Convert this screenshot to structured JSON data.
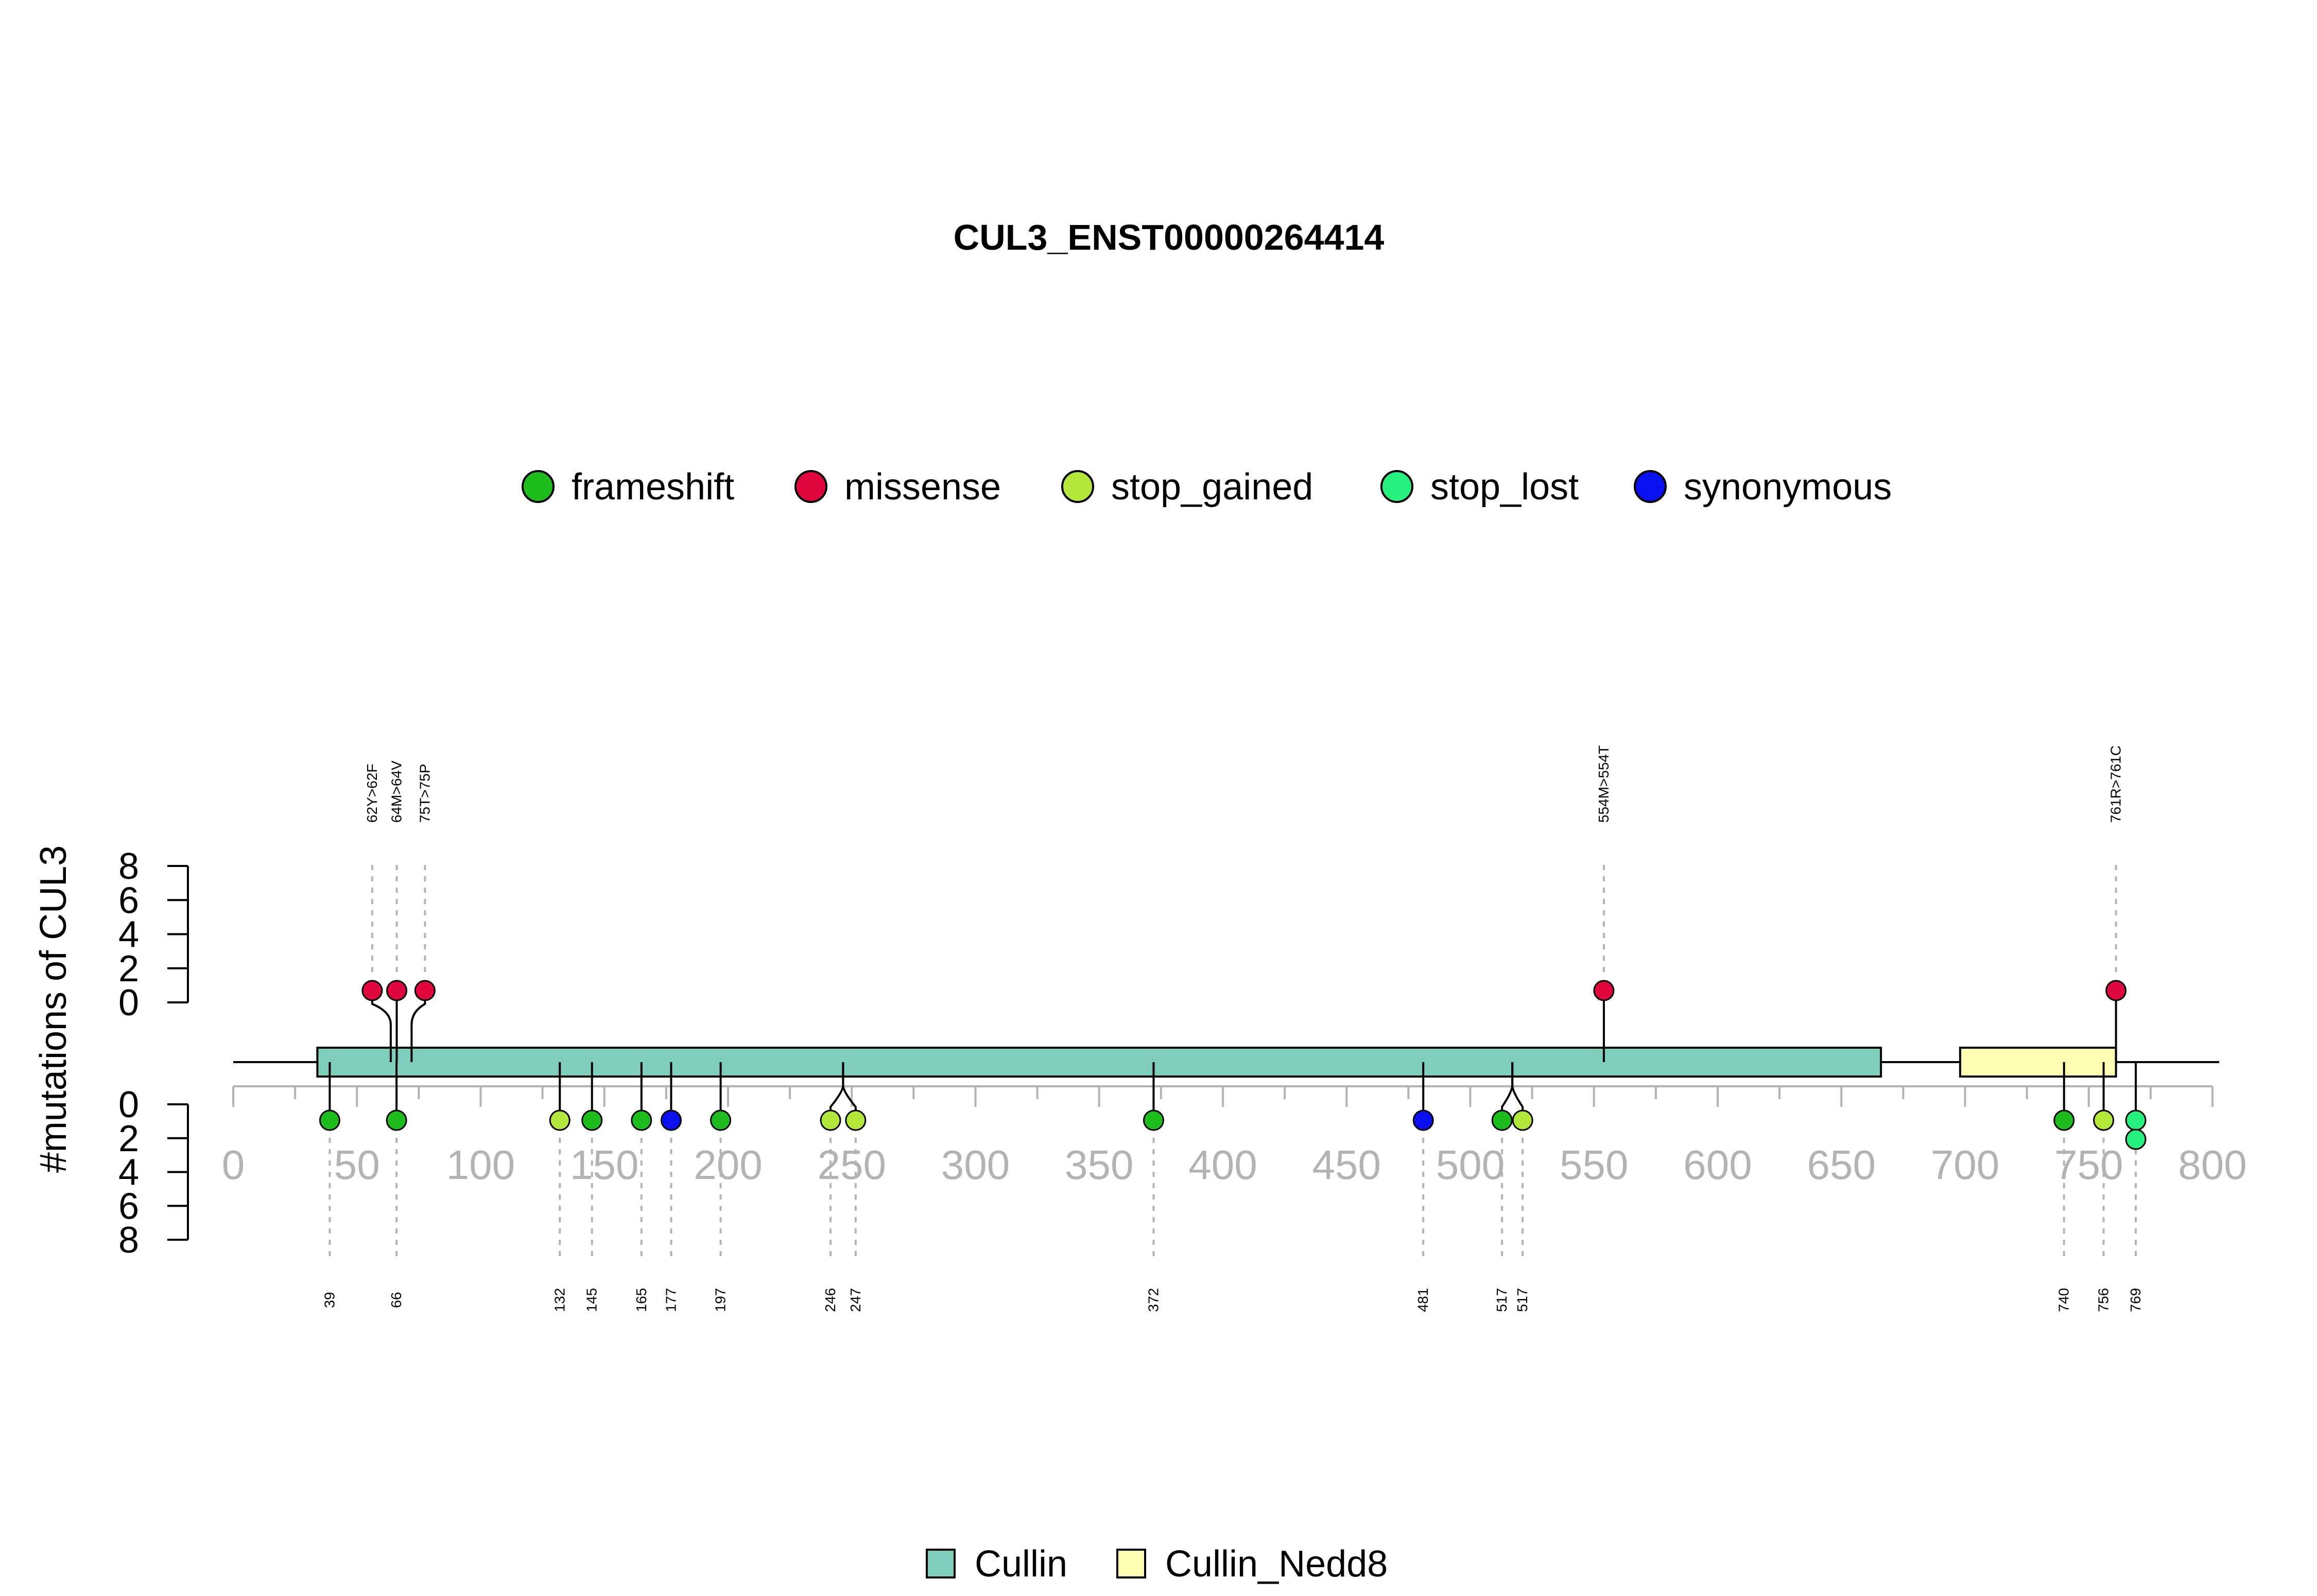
{
  "chart_data": {
    "type": "lollipop",
    "title": "CUL3_ENST00000264414",
    "ylabel": "#mutations of CUL3",
    "x_axis": {
      "min": 0,
      "max": 800,
      "ticks": [
        0,
        50,
        100,
        150,
        200,
        250,
        300,
        350,
        400,
        450,
        500,
        550,
        600,
        650,
        700,
        750,
        800
      ],
      "minor_ticks": [
        25,
        75,
        125,
        175,
        225,
        275,
        325,
        375,
        425,
        475,
        525,
        575,
        625,
        675,
        725,
        775
      ]
    },
    "y_axis_top": {
      "ticks": [
        0,
        2,
        4,
        6,
        8
      ]
    },
    "y_axis_bottom": {
      "ticks": [
        0,
        2,
        4,
        6,
        8
      ]
    },
    "colors": {
      "frameshift": "#1DBD1D",
      "missense": "#E0063E",
      "stop_gained": "#B3E83A",
      "stop_lost": "#26F07E",
      "synonymous": "#0A10F0",
      "Cullin": "#7FCDBB",
      "Cullin_Nedd8": "#FFFFB3"
    },
    "mutation_legend": [
      "frameshift",
      "missense",
      "stop_gained",
      "stop_lost",
      "synonymous"
    ],
    "domain_legend": [
      "Cullin",
      "Cullin_Nedd8"
    ],
    "domains": [
      {
        "name": "Cullin",
        "start": 34,
        "end": 666
      },
      {
        "name": "Cullin_Nedd8",
        "start": 698,
        "end": 761
      }
    ],
    "upper_mutations": [
      {
        "pos": 62,
        "count": 1,
        "type": "missense",
        "label": "62Y>62F"
      },
      {
        "pos": 64,
        "count": 1,
        "type": "missense",
        "label": "64M>64V"
      },
      {
        "pos": 75,
        "count": 1,
        "type": "missense",
        "label": "75T>75P"
      },
      {
        "pos": 554,
        "count": 1,
        "type": "missense",
        "label": "554M>554T"
      },
      {
        "pos": 761,
        "count": 1,
        "type": "missense",
        "label": "761R>761C"
      }
    ],
    "lower_mutations": [
      {
        "pos": 39,
        "count": 1,
        "type": "frameshift",
        "label": "39"
      },
      {
        "pos": 66,
        "count": 1,
        "type": "frameshift",
        "label": "66"
      },
      {
        "pos": 132,
        "count": 1,
        "type": "stop_gained",
        "label": "132"
      },
      {
        "pos": 145,
        "count": 1,
        "type": "frameshift",
        "label": "145"
      },
      {
        "pos": 165,
        "count": 1,
        "type": "frameshift",
        "label": "165"
      },
      {
        "pos": 177,
        "count": 1,
        "type": "synonymous",
        "label": "177"
      },
      {
        "pos": 197,
        "count": 1,
        "type": "frameshift",
        "label": "197"
      },
      {
        "pos": 246,
        "count": 1,
        "type": "stop_gained",
        "label": "246"
      },
      {
        "pos": 247,
        "count": 1,
        "type": "stop_gained",
        "label": "247"
      },
      {
        "pos": 372,
        "count": 1,
        "type": "frameshift",
        "label": "372"
      },
      {
        "pos": 481,
        "count": 1,
        "type": "synonymous",
        "label": "481"
      },
      {
        "pos": 517,
        "count": 1,
        "type": "frameshift",
        "label": "517"
      },
      {
        "pos": 517,
        "count": 1,
        "type": "stop_gained",
        "label": "517"
      },
      {
        "pos": 740,
        "count": 1,
        "type": "frameshift",
        "label": "740"
      },
      {
        "pos": 756,
        "count": 1,
        "type": "stop_gained",
        "label": "756"
      },
      {
        "pos": 769,
        "count": 2,
        "type": "stop_lost",
        "label": "769"
      }
    ]
  }
}
